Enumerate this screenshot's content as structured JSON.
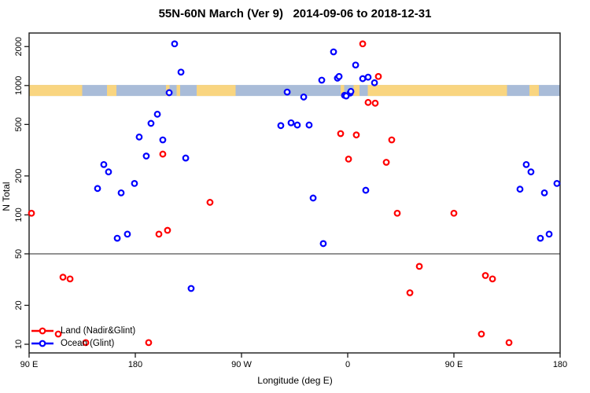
{
  "title": "55N-60N March (Ver 9)   2014-09-06 to 2018-12-31",
  "axes": {
    "x_label": "Longitude (deg E)",
    "y_label": "N Total"
  },
  "legend": {
    "land_label": "Land (Nadir&Glint)",
    "ocean_label": "Ocean (Glint)"
  },
  "chart_data": {
    "type": "scatter",
    "y_scale": "log",
    "ylim": [
      10,
      2300
    ],
    "x_axis_units_deg_east_wrapped": [
      90,
      540
    ],
    "x_ticks": [
      {
        "u": 90,
        "label": "90 E"
      },
      {
        "u": 180,
        "label": "180"
      },
      {
        "u": 270,
        "label": "90 W"
      },
      {
        "u": 360,
        "label": "0"
      },
      {
        "u": 450,
        "label": "90 E"
      },
      {
        "u": 540,
        "label": "180"
      }
    ],
    "y_ticks": [
      10,
      20,
      50,
      100,
      200,
      500,
      1000,
      2000
    ],
    "reference_line": {
      "n": 50,
      "color": "#8C8C8C"
    },
    "map_strip": {
      "n_top": 1010,
      "n_bottom": 830,
      "ocean_color": "#A9BCD8",
      "land_color": "#F9D580",
      "land_segments_u": [
        [
          90,
          135
        ],
        [
          156,
          164
        ],
        [
          206,
          209
        ],
        [
          215,
          218
        ],
        [
          232,
          265
        ],
        [
          354,
          357
        ],
        [
          365,
          370
        ],
        [
          377,
          495
        ],
        [
          514,
          522
        ]
      ]
    },
    "series": [
      {
        "name": "Ocean (Glint)",
        "color": "#0000FF",
        "points_u_n": [
          [
            213.3,
            2100
          ],
          [
            218.7,
            1270
          ],
          [
            208.7,
            880
          ],
          [
            198.7,
            600
          ],
          [
            193.3,
            510
          ],
          [
            183.3,
            400
          ],
          [
            203.3,
            380
          ],
          [
            189.3,
            285
          ],
          [
            222.7,
            275
          ],
          [
            153.3,
            245
          ],
          [
            157.3,
            215
          ],
          [
            179.3,
            175
          ],
          [
            148,
            160
          ],
          [
            168,
            148
          ],
          [
            164.7,
            66
          ],
          [
            173.3,
            71
          ],
          [
            227.3,
            27
          ],
          [
            308.7,
            890
          ],
          [
            322.7,
            815
          ],
          [
            338,
            1100
          ],
          [
            351.3,
            1140
          ],
          [
            348,
            1820
          ],
          [
            352.7,
            1175
          ],
          [
            357.3,
            840
          ],
          [
            362,
            875
          ],
          [
            362.7,
            900
          ],
          [
            358.7,
            830
          ],
          [
            366.7,
            1440
          ],
          [
            372.7,
            1130
          ],
          [
            377.3,
            1160
          ],
          [
            382.7,
            1050
          ],
          [
            303.3,
            490
          ],
          [
            312,
            515
          ],
          [
            317.3,
            495
          ],
          [
            327.3,
            495
          ],
          [
            330.7,
            135
          ],
          [
            339.3,
            60
          ],
          [
            375.3,
            155
          ],
          [
            511.3,
            245
          ],
          [
            515.3,
            215
          ],
          [
            506,
            158
          ],
          [
            526.7,
            148
          ],
          [
            537.3,
            175
          ],
          [
            530.7,
            71
          ],
          [
            523.3,
            66
          ]
        ]
      },
      {
        "name": "Land (Nadir&Glint)",
        "color": "#FF0000",
        "points_u_n": [
          [
            372.7,
            2100
          ],
          [
            386,
            1175
          ],
          [
            377.3,
            740
          ],
          [
            383.3,
            730
          ],
          [
            354,
            425
          ],
          [
            367.3,
            415
          ],
          [
            397.3,
            380
          ],
          [
            360.7,
            270
          ],
          [
            392.7,
            255
          ],
          [
            203.3,
            295
          ],
          [
            207.3,
            76
          ],
          [
            200,
            71
          ],
          [
            243.3,
            125
          ],
          [
            402,
            103
          ],
          [
            450,
            103
          ],
          [
            92,
            103
          ],
          [
            420.7,
            40
          ],
          [
            412.7,
            25
          ],
          [
            118.7,
            33
          ],
          [
            124.7,
            32
          ],
          [
            476.7,
            34
          ],
          [
            482.7,
            32
          ],
          [
            114.7,
            12
          ],
          [
            473.3,
            12
          ],
          [
            138,
            10.3
          ],
          [
            496.7,
            10.3
          ],
          [
            191.3,
            10.3
          ]
        ]
      }
    ]
  }
}
